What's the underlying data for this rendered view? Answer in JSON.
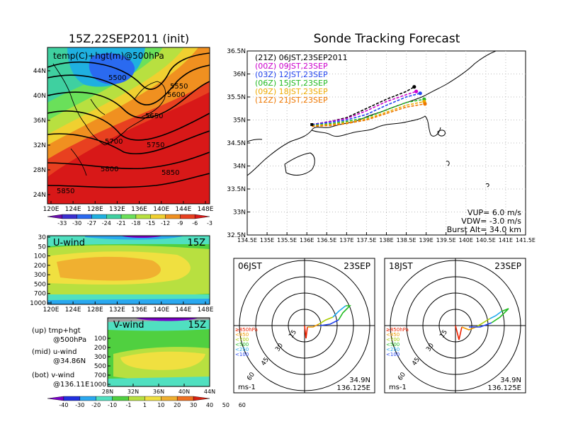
{
  "colors": {
    "tmap": [
      "#6a0dad",
      "#3a2fd0",
      "#2a6af0",
      "#1fb0e0",
      "#3fd0a0",
      "#6ae05a",
      "#b8e040",
      "#f0d030",
      "#f09020",
      "#e84020",
      "#d81818"
    ],
    "wind": [
      "#7a00c8",
      "#2030e0",
      "#2aa8f0",
      "#50e0c0",
      "#50d040",
      "#b8e040",
      "#f0e040",
      "#f0b030",
      "#f07020",
      "#d82010"
    ],
    "hour_colors": [
      "#000000",
      "#cc00cc",
      "#2244ee",
      "#22bb22",
      "#eeaa00",
      "#ee7700"
    ]
  },
  "top_map": {
    "title": "15Z,22SEP2011 (init)",
    "label": "temp(C)+hgt(m)@500hPa",
    "contour_labels": [
      "5500",
      "5550",
      "5600",
      "5650",
      "5700",
      "5750",
      "5800",
      "5850",
      "5850"
    ],
    "yticks": [
      "44N",
      "40N",
      "36N",
      "32N",
      "28N",
      "24N"
    ],
    "xticks": [
      "120E",
      "124E",
      "128E",
      "132E",
      "136E",
      "140E",
      "144E",
      "148E"
    ],
    "colorbar": [
      "-33",
      "-30",
      "-27",
      "-24",
      "-21",
      "-18",
      "-15",
      "-12",
      "-9",
      "-6",
      "-3"
    ]
  },
  "uwind": {
    "label": "U-wind",
    "time": "15Z",
    "yticks": [
      "30",
      "50",
      "100",
      "200",
      "300",
      "500",
      "700",
      "1000"
    ],
    "xticks": [
      "120E",
      "124E",
      "128E",
      "132E",
      "136E",
      "140E",
      "144E",
      "148E"
    ]
  },
  "vwind": {
    "label": "V-wind",
    "time": "15Z",
    "yticks": [
      "100",
      "200",
      "300",
      "500",
      "700",
      "1000"
    ],
    "xticks": [
      "28N",
      "32N",
      "36N",
      "40N",
      "44N"
    ],
    "colorbar": [
      "-40",
      "-30",
      "-20",
      "-10",
      "-1",
      "1",
      "10",
      "20",
      "30",
      "40",
      "50",
      "60"
    ]
  },
  "legend_notes": [
    {
      "a": "(up) tmp+hgt",
      "b": "@500hPa"
    },
    {
      "a": "(mid) u-wind",
      "b": "@34.86N"
    },
    {
      "a": "(bot) v-wind",
      "b": "@136.11E"
    }
  ],
  "track": {
    "title": "Sonde Tracking Forecast",
    "yticks": [
      "36.5N",
      "36N",
      "35.5N",
      "35N",
      "34.5N",
      "34N",
      "33.5N",
      "33N",
      "32.5N"
    ],
    "xticks": [
      "134.5E",
      "135E",
      "135.5E",
      "136E",
      "136.5E",
      "137E",
      "137.5E",
      "138E",
      "138.5E",
      "139E",
      "139.5E",
      "140E",
      "140.5E",
      "141E",
      "141.5E"
    ],
    "legend": [
      {
        "text": "(21Z)  06JST,23SEP2011"
      },
      {
        "text": "(00Z)  09JST,23SEP"
      },
      {
        "text": "(03Z)  12JST,23SEP"
      },
      {
        "text": "(06Z)  15JST,23SEP"
      },
      {
        "text": "(09Z)  18JST,23SEP"
      },
      {
        "text": "(12Z)  21JST,23SEP"
      }
    ],
    "params": [
      "VUP= 6.0 m/s",
      "VDW= -3.0 m/s",
      "Burst Alt= 34.0 km"
    ]
  },
  "polar_left": {
    "time": "06JST",
    "date": "23SEP",
    "rings": [
      "15",
      "30",
      "45",
      "60"
    ],
    "units": "ms-1",
    "lat": "34.9N",
    "lon": "136.125E"
  },
  "polar_right": {
    "time": "18JST",
    "date": "23SEP",
    "rings": [
      "15",
      "30",
      "45",
      "60"
    ],
    "units": "ms-1",
    "lat": "34.9N",
    "lon": "136.125E"
  },
  "polar_legend": [
    {
      "text": "≥850hPa",
      "color": "#ee2200"
    },
    {
      "text": "<850",
      "color": "#ee9900"
    },
    {
      "text": "<700",
      "color": "#aacc00"
    },
    {
      "text": "<500",
      "color": "#22bb22"
    },
    {
      "text": "<250",
      "color": "#22aaee"
    },
    {
      "text": "<100",
      "color": "#2244ee"
    }
  ],
  "chart_data": [
    {
      "type": "line",
      "title": "Sonde Tracking Forecast",
      "xlim": [
        134.5,
        141.5
      ],
      "ylim": [
        32.5,
        36.5
      ],
      "launch": [
        136.125,
        34.9
      ],
      "series": [
        {
          "name": "(21Z)  06JST,23SEP2011",
          "x": [
            136.125,
            136.6,
            137.0,
            137.5,
            138.0,
            138.5,
            138.7
          ],
          "y": [
            34.9,
            34.97,
            35.05,
            35.25,
            35.45,
            35.62,
            35.72
          ]
        },
        {
          "name": "(00Z)  09JST,23SEP",
          "x": [
            136.125,
            136.6,
            137.0,
            137.5,
            138.0,
            138.5,
            138.75
          ],
          "y": [
            34.9,
            34.97,
            35.03,
            35.2,
            35.4,
            35.55,
            35.62
          ]
        },
        {
          "name": "(03Z)  12JST,23SEP",
          "x": [
            136.125,
            136.6,
            137.0,
            137.5,
            138.0,
            138.5,
            138.85
          ],
          "y": [
            34.9,
            34.95,
            35.0,
            35.12,
            35.32,
            35.5,
            35.58
          ]
        },
        {
          "name": "(06Z)  15JST,23SEP",
          "x": [
            136.125,
            136.6,
            137.0,
            137.5,
            138.0,
            138.5,
            138.95
          ],
          "y": [
            34.88,
            34.92,
            34.97,
            35.05,
            35.22,
            35.38,
            35.45
          ]
        },
        {
          "name": "(09Z)  18JST,23SEP",
          "x": [
            136.125,
            136.6,
            137.0,
            137.5,
            138.0,
            138.5,
            138.95
          ],
          "y": [
            34.87,
            34.9,
            34.94,
            35.02,
            35.17,
            35.32,
            35.4
          ]
        },
        {
          "name": "(12Z)  21JST,23SEP",
          "x": [
            136.125,
            136.6,
            137.0,
            137.5,
            138.0,
            138.5,
            138.97
          ],
          "y": [
            34.86,
            34.88,
            34.92,
            35.0,
            35.14,
            35.28,
            35.35
          ]
        }
      ]
    }
  ]
}
